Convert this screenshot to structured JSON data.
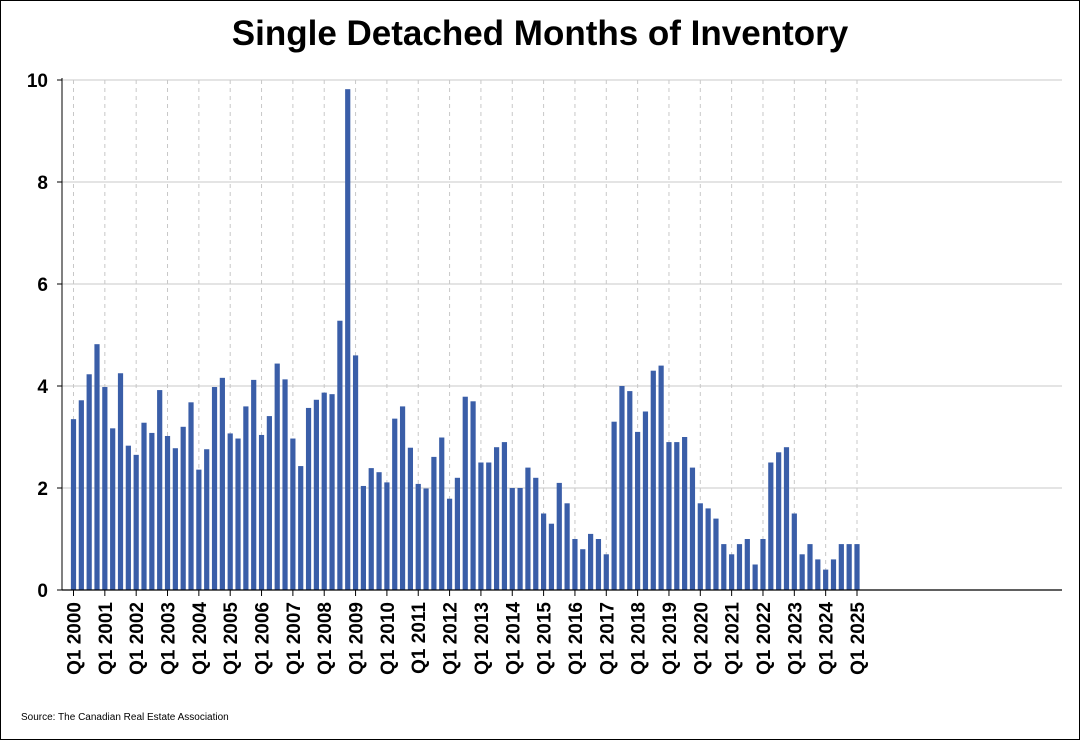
{
  "chart_data": {
    "type": "bar",
    "title": "Single Detached Months of Inventory",
    "source": "Source: The Canadian Real Estate Association",
    "xlabel": "",
    "ylabel": "",
    "ylim": [
      0,
      10
    ],
    "yticks": [
      0,
      2,
      4,
      6,
      8,
      10
    ],
    "xtick_labels": [
      "Q1 2000",
      "Q1 2001",
      "Q1 2002",
      "Q1 2003",
      "Q1 2004",
      "Q1 2005",
      "Q1 2006",
      "Q1 2007",
      "Q1 2008",
      "Q1 2009",
      "Q1 2010",
      "Q1 2011",
      "Q1 2012",
      "Q1 2013",
      "Q1 2014",
      "Q1 2015",
      "Q1 2016",
      "Q1 2017",
      "Q1 2018",
      "Q1 2019",
      "Q1 2020",
      "Q1 2021",
      "Q1 2022",
      "Q1 2023",
      "Q1 2024",
      "Q1 2025"
    ],
    "bar_color": "#3a5ea8",
    "grid": true,
    "categories": [
      "Q1 2000",
      "Q2 2000",
      "Q3 2000",
      "Q4 2000",
      "Q1 2001",
      "Q2 2001",
      "Q3 2001",
      "Q4 2001",
      "Q1 2002",
      "Q2 2002",
      "Q3 2002",
      "Q4 2002",
      "Q1 2003",
      "Q2 2003",
      "Q3 2003",
      "Q4 2003",
      "Q1 2004",
      "Q2 2004",
      "Q3 2004",
      "Q4 2004",
      "Q1 2005",
      "Q2 2005",
      "Q3 2005",
      "Q4 2005",
      "Q1 2006",
      "Q2 2006",
      "Q3 2006",
      "Q4 2006",
      "Q1 2007",
      "Q2 2007",
      "Q3 2007",
      "Q4 2007",
      "Q1 2008",
      "Q2 2008",
      "Q3 2008",
      "Q4 2008",
      "Q1 2009",
      "Q2 2009",
      "Q3 2009",
      "Q4 2009",
      "Q1 2010",
      "Q2 2010",
      "Q3 2010",
      "Q4 2010",
      "Q1 2011",
      "Q2 2011",
      "Q3 2011",
      "Q4 2011",
      "Q1 2012",
      "Q2 2012",
      "Q3 2012",
      "Q4 2012",
      "Q1 2013",
      "Q2 2013",
      "Q3 2013",
      "Q4 2013",
      "Q1 2014",
      "Q2 2014",
      "Q3 2014",
      "Q4 2014",
      "Q1 2015",
      "Q2 2015",
      "Q3 2015",
      "Q4 2015",
      "Q1 2016",
      "Q2 2016",
      "Q3 2016",
      "Q4 2016",
      "Q1 2017",
      "Q2 2017",
      "Q3 2017",
      "Q4 2017",
      "Q1 2018",
      "Q2 2018",
      "Q3 2018",
      "Q4 2018",
      "Q1 2019",
      "Q2 2019",
      "Q3 2019",
      "Q4 2019",
      "Q1 2020",
      "Q2 2020",
      "Q3 2020",
      "Q4 2020",
      "Q1 2021",
      "Q2 2021",
      "Q3 2021",
      "Q4 2021",
      "Q1 2022",
      "Q2 2022",
      "Q3 2022",
      "Q4 2022",
      "Q1 2023",
      "Q2 2023",
      "Q3 2023",
      "Q4 2023",
      "Q1 2024",
      "Q2 2024",
      "Q3 2024",
      "Q4 2024",
      "Q1 2025"
    ],
    "values": [
      3.35,
      3.72,
      4.23,
      4.82,
      3.98,
      3.17,
      4.25,
      2.83,
      2.65,
      3.28,
      3.08,
      3.92,
      3.02,
      2.78,
      3.2,
      3.68,
      2.36,
      2.76,
      3.98,
      4.16,
      3.07,
      2.97,
      3.6,
      4.12,
      3.04,
      3.41,
      4.44,
      4.13,
      2.97,
      2.43,
      3.57,
      3.73,
      3.87,
      3.84,
      5.28,
      9.82,
      4.6,
      2.04,
      2.39,
      2.31,
      2.11,
      3.36,
      3.6,
      2.79,
      2.08,
      1.99,
      2.61,
      2.99,
      1.79,
      2.2,
      3.79,
      3.7,
      2.5,
      2.5,
      2.8,
      2.9,
      2.0,
      2.0,
      2.4,
      2.2,
      1.5,
      1.3,
      2.1,
      1.7,
      1.0,
      0.8,
      1.1,
      1.0,
      0.7,
      3.3,
      4.0,
      3.9,
      3.1,
      3.5,
      4.3,
      4.4,
      2.9,
      2.9,
      3.0,
      2.4,
      1.7,
      1.6,
      1.4,
      0.9,
      0.7,
      0.9,
      1.0,
      0.5,
      1.0,
      2.5,
      2.7,
      2.8,
      1.5,
      0.7,
      0.9,
      0.6,
      0.4,
      0.6,
      0.9,
      0.9,
      0.9
    ]
  }
}
